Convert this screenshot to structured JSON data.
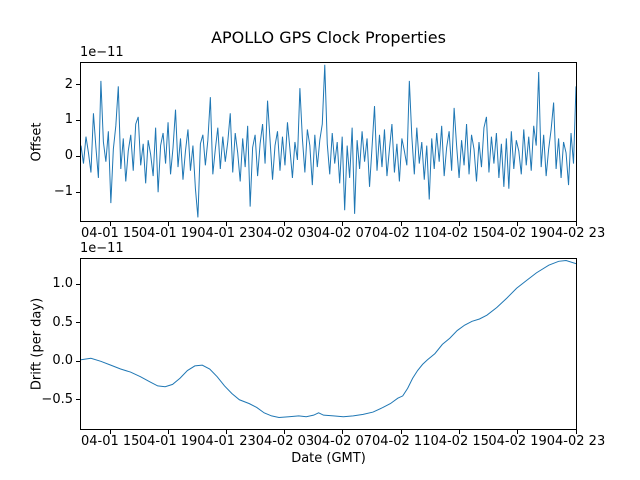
{
  "chart_data": [
    {
      "type": "line",
      "title": "APOLLO GPS Clock Properties",
      "ylabel": "Offset",
      "offset_text": "1e−11",
      "unit_multiplier": "1e-11",
      "color": "#1f77b4",
      "ylim": [
        -1.8,
        2.6
      ],
      "yticks": {
        "labels": [
          "2",
          "1",
          "0",
          "−1"
        ],
        "values": [
          2,
          1,
          0,
          -1
        ]
      },
      "xticks": {
        "labels": [
          "04-01 15",
          "04-01 19",
          "04-01 23",
          "04-02 03",
          "04-02 07",
          "04-02 11",
          "04-02 15",
          "04-02 19",
          "04-02 23"
        ],
        "fracs": [
          0.059,
          0.176,
          0.294,
          0.412,
          0.529,
          0.647,
          0.765,
          0.882,
          1.0
        ]
      },
      "values": [
        0.3,
        -0.2,
        0.55,
        0.1,
        -0.45,
        1.2,
        0.25,
        -0.6,
        2.1,
        0.4,
        -0.15,
        0.7,
        -1.3,
        0.2,
        0.85,
        1.95,
        -0.35,
        0.5,
        -0.7,
        0.15,
        0.6,
        -0.4,
        0.9,
        1.1,
        -0.25,
        0.35,
        -0.75,
        0.45,
        0.05,
        -0.55,
        0.8,
        -1.0,
        0.3,
        0.65,
        -0.2,
        0.95,
        -0.5,
        0.25,
        1.3,
        -0.3,
        0.5,
        -0.65,
        0.15,
        0.75,
        -0.4,
        0.3,
        -0.9,
        -1.7,
        0.35,
        0.6,
        -0.25,
        0.45,
        1.65,
        -0.5,
        0.2,
        0.8,
        -0.35,
        0.55,
        -0.15,
        0.4,
        1.2,
        -0.45,
        0.65,
        0.1,
        -0.7,
        0.5,
        -0.3,
        0.85,
        -1.4,
        0.25,
        0.6,
        -0.55,
        0.35,
        0.9,
        -0.2,
        1.55,
        0.45,
        -0.65,
        0.3,
        0.7,
        -0.4,
        0.55,
        -0.25,
        0.95,
        0.2,
        -0.6,
        0.4,
        -0.1,
        1.9,
        0.5,
        -0.45,
        0.75,
        0.3,
        -0.8,
        0.6,
        -0.3,
        0.45,
        0.9,
        2.55,
        0.35,
        -0.5,
        0.65,
        -0.2,
        0.4,
        -0.75,
        0.55,
        -1.5,
        0.3,
        -0.6,
        0.8,
        -1.6,
        0.45,
        -0.35,
        0.7,
        -0.15,
        0.5,
        -0.85,
        0.25,
        1.4,
        -0.4,
        0.6,
        -0.3,
        0.75,
        -0.55,
        0.2,
        0.9,
        -0.45,
        0.35,
        -0.7,
        0.5,
        0.15,
        -0.25,
        2.1,
        0.55,
        -0.5,
        0.8,
        -0.2,
        0.4,
        -0.65,
        0.3,
        -1.2,
        0.5,
        -0.35,
        0.65,
        -0.15,
        0.85,
        -0.55,
        0.25,
        0.7,
        -0.4,
        1.35,
        0.3,
        -0.6,
        0.45,
        -0.25,
        0.9,
        -0.5,
        0.6,
        0.2,
        -0.7,
        0.4,
        -0.3,
        0.8,
        1.1,
        -0.45,
        0.55,
        -0.2,
        0.65,
        -0.6,
        0.35,
        -0.85,
        0.5,
        -0.9,
        0.7,
        -0.35,
        0.45,
        0.15,
        -0.5,
        0.75,
        -0.25,
        0.55,
        -0.4,
        0.85,
        0.3,
        2.35,
        -0.3,
        0.6,
        -0.55,
        0.2,
        0.75,
        1.5,
        -0.35,
        0.5,
        -0.6,
        0.4,
        0.1,
        -0.8,
        0.65,
        -0.2,
        1.95
      ]
    },
    {
      "type": "line",
      "ylabel": "Drift (per day)",
      "xlabel": "Date (GMT)",
      "offset_text": "1e−11",
      "unit_multiplier": "1e-11",
      "color": "#1f77b4",
      "ylim": [
        -0.88,
        1.33
      ],
      "yticks": {
        "labels": [
          "1.0",
          "0.5",
          "0.0",
          "−0.5"
        ],
        "values": [
          1.0,
          0.5,
          0.0,
          -0.5
        ]
      },
      "xticks": {
        "labels": [
          "04-01 15",
          "04-01 19",
          "04-01 23",
          "04-02 03",
          "04-02 07",
          "04-02 11",
          "04-02 15",
          "04-02 19",
          "04-02 23"
        ],
        "fracs": [
          0.059,
          0.176,
          0.294,
          0.412,
          0.529,
          0.647,
          0.765,
          0.882,
          1.0
        ]
      },
      "points": [
        [
          0.0,
          0.02
        ],
        [
          0.02,
          0.04
        ],
        [
          0.04,
          0.0
        ],
        [
          0.06,
          -0.05
        ],
        [
          0.08,
          -0.1
        ],
        [
          0.1,
          -0.14
        ],
        [
          0.12,
          -0.2
        ],
        [
          0.14,
          -0.27
        ],
        [
          0.155,
          -0.32
        ],
        [
          0.17,
          -0.33
        ],
        [
          0.185,
          -0.3
        ],
        [
          0.2,
          -0.22
        ],
        [
          0.215,
          -0.12
        ],
        [
          0.23,
          -0.06
        ],
        [
          0.245,
          -0.05
        ],
        [
          0.26,
          -0.1
        ],
        [
          0.275,
          -0.2
        ],
        [
          0.29,
          -0.32
        ],
        [
          0.305,
          -0.42
        ],
        [
          0.32,
          -0.5
        ],
        [
          0.34,
          -0.55
        ],
        [
          0.355,
          -0.6
        ],
        [
          0.37,
          -0.67
        ],
        [
          0.385,
          -0.71
        ],
        [
          0.4,
          -0.73
        ],
        [
          0.42,
          -0.72
        ],
        [
          0.44,
          -0.71
        ],
        [
          0.455,
          -0.72
        ],
        [
          0.47,
          -0.7
        ],
        [
          0.48,
          -0.67
        ],
        [
          0.49,
          -0.7
        ],
        [
          0.51,
          -0.71
        ],
        [
          0.53,
          -0.72
        ],
        [
          0.55,
          -0.71
        ],
        [
          0.57,
          -0.69
        ],
        [
          0.59,
          -0.66
        ],
        [
          0.61,
          -0.6
        ],
        [
          0.625,
          -0.55
        ],
        [
          0.64,
          -0.48
        ],
        [
          0.65,
          -0.45
        ],
        [
          0.66,
          -0.35
        ],
        [
          0.67,
          -0.22
        ],
        [
          0.68,
          -0.12
        ],
        [
          0.69,
          -0.04
        ],
        [
          0.7,
          0.02
        ],
        [
          0.715,
          0.1
        ],
        [
          0.73,
          0.22
        ],
        [
          0.745,
          0.3
        ],
        [
          0.76,
          0.4
        ],
        [
          0.775,
          0.47
        ],
        [
          0.79,
          0.52
        ],
        [
          0.805,
          0.55
        ],
        [
          0.82,
          0.6
        ],
        [
          0.84,
          0.7
        ],
        [
          0.86,
          0.82
        ],
        [
          0.88,
          0.95
        ],
        [
          0.9,
          1.05
        ],
        [
          0.92,
          1.15
        ],
        [
          0.945,
          1.25
        ],
        [
          0.965,
          1.3
        ],
        [
          0.98,
          1.31
        ],
        [
          1.0,
          1.27
        ]
      ]
    }
  ]
}
